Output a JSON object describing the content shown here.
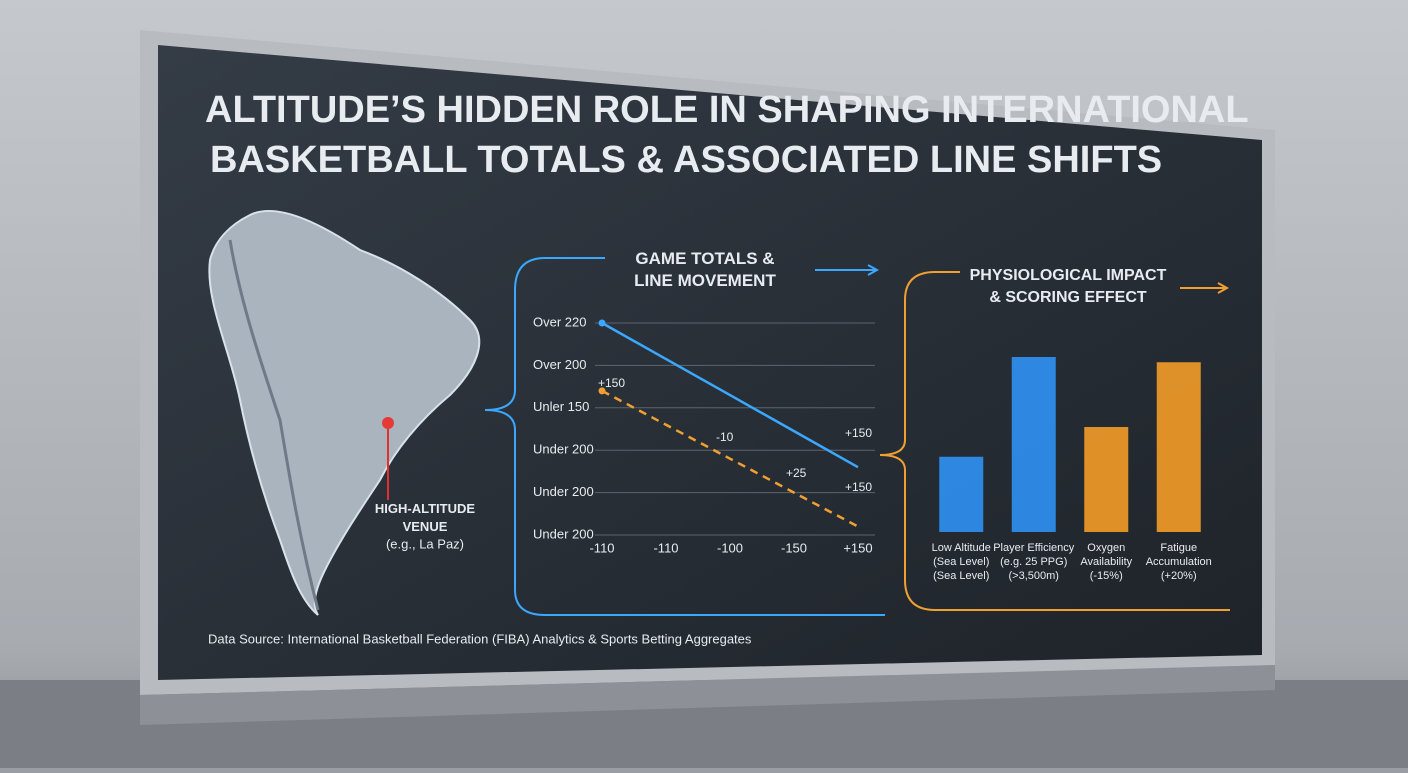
{
  "title": [
    "ALTITUDE’S HIDDEN ROLE IN SHAPING INTERNATIONAL",
    "BASKETBALL TOTALS & ASSOCIATED LINE SHIFTS"
  ],
  "map": {
    "venue_label": "HIGH-ALTITUDE\nVENUE",
    "venue_example": "(e.g., La Paz)"
  },
  "source": "Data Source: International Basketball Federation (FIBA) Analytics & Sports Betting Aggregates",
  "chart_data": [
    {
      "type": "line",
      "title": "GAME TOTALS &\nLINE MOVEMENT",
      "categories": [
        "-110",
        "-110",
        "-100",
        "-150",
        "+150"
      ],
      "ylim": [
        0,
        5
      ],
      "yticks": [
        {
          "value": 5,
          "label": "Over 220"
        },
        {
          "value": 4,
          "label": "Over 200"
        },
        {
          "value": 3,
          "label": "Unler 150"
        },
        {
          "value": 2,
          "label": "Under 200"
        },
        {
          "value": 1,
          "label": "Under 200"
        },
        {
          "value": 0,
          "label": "Under 200"
        }
      ],
      "grid": true,
      "series": [
        {
          "color": "#3aa8ff",
          "dashed": false,
          "values": [
            5,
            4.15,
            3.3,
            2.45,
            1.6
          ]
        },
        {
          "color": "#f0a030",
          "dashed": true,
          "values": [
            3.4,
            2.6,
            1.8,
            1.0,
            0.2
          ]
        }
      ],
      "annotations": [
        "+150",
        "-10",
        "+150",
        "+25",
        "+150"
      ]
    },
    {
      "type": "bar",
      "title": "PHYSIOLOGICAL IMPACT\n& SCORING EFFECT",
      "categories": [
        "Low Altitude\n(Sea Level)\n(Sea Level)",
        "Player Efficiency\n(e.g. 25 PPG)\n(>3,500m)",
        "Oxygen\nAvailability\n(-15%)",
        "Fatigue\nAccumulation\n(+20%)"
      ],
      "values": [
        43,
        100,
        60,
        97
      ],
      "colors": [
        "#2f8ff0",
        "#2f8ff0",
        "#f09a28",
        "#f09a28"
      ],
      "ylim": [
        0,
        100
      ]
    }
  ]
}
